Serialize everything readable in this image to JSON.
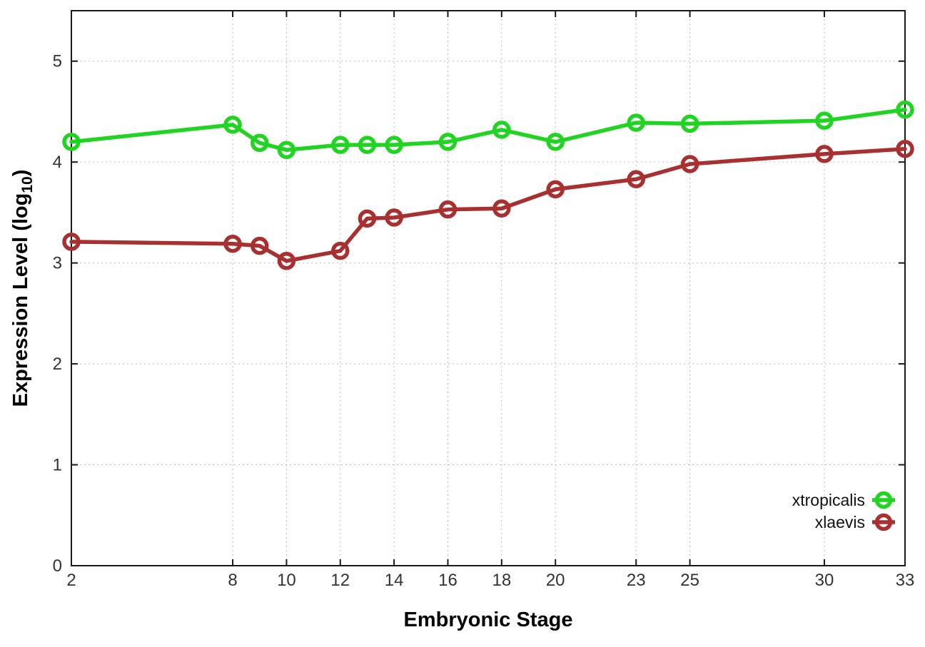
{
  "chart_data": {
    "type": "line",
    "title": "",
    "xlabel": "Embryonic Stage",
    "ylabel": "Expression Level (log10)",
    "ylabel_parts": {
      "pre": "Expression Level (log",
      "sub": "10",
      "post": ")"
    },
    "x": [
      2,
      8,
      9,
      10,
      12,
      13,
      14,
      16,
      18,
      20,
      23,
      25,
      30,
      33
    ],
    "series": [
      {
        "name": "xtropicalis",
        "color": "#22d422",
        "values": [
          4.2,
          4.37,
          4.19,
          4.12,
          4.17,
          4.17,
          4.17,
          4.2,
          4.32,
          4.2,
          4.39,
          4.38,
          4.41,
          4.52
        ]
      },
      {
        "name": "xlaevis",
        "color": "#a83030",
        "values": [
          3.21,
          3.19,
          3.17,
          3.02,
          3.12,
          3.44,
          3.45,
          3.53,
          3.54,
          3.73,
          3.83,
          3.98,
          4.08,
          4.13
        ]
      }
    ],
    "xticks": [
      2,
      8,
      10,
      12,
      14,
      16,
      18,
      20,
      23,
      25,
      30,
      33
    ],
    "yticks": [
      0,
      1,
      2,
      3,
      4,
      5
    ],
    "xlim": [
      2,
      33
    ],
    "ylim": [
      0,
      5.5
    ],
    "grid": true,
    "grid_color": "#bdbdbd",
    "axis_color": "#1a1a1a",
    "tick_label_color": "#333333",
    "legend_position": "bottom-right",
    "legend_labels": [
      "xtropicalis",
      "xlaevis"
    ],
    "marker": "open-circle",
    "background": "#ffffff"
  }
}
